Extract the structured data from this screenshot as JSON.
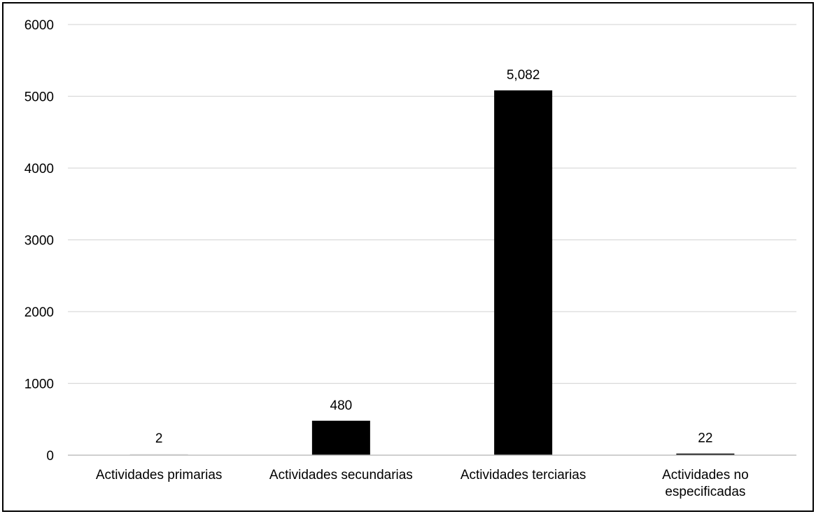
{
  "chart_data": {
    "type": "bar",
    "title": "",
    "xlabel": "",
    "ylabel": "",
    "categories": [
      [
        "Actividades primarias"
      ],
      [
        "Actividades secundarias"
      ],
      [
        "Actividades terciarias"
      ],
      [
        "Actividades no",
        "especificadas"
      ]
    ],
    "values": [
      2,
      480,
      5082,
      22
    ],
    "data_labels": [
      "2",
      "480",
      "5,082",
      "22"
    ],
    "ylim": [
      0,
      6000
    ],
    "yticks": [
      0,
      1000,
      2000,
      3000,
      4000,
      5000,
      6000
    ],
    "ytick_labels": [
      "0",
      "1000",
      "2000",
      "3000",
      "4000",
      "5000",
      "6000"
    ],
    "grid": true,
    "legend": "none",
    "colors": {
      "bar_fill": "#000000",
      "small_bar_fill": "#d9d9d9",
      "grid": "#d9d9d9",
      "axis": "#bfbfbf",
      "border": "#000000"
    }
  }
}
